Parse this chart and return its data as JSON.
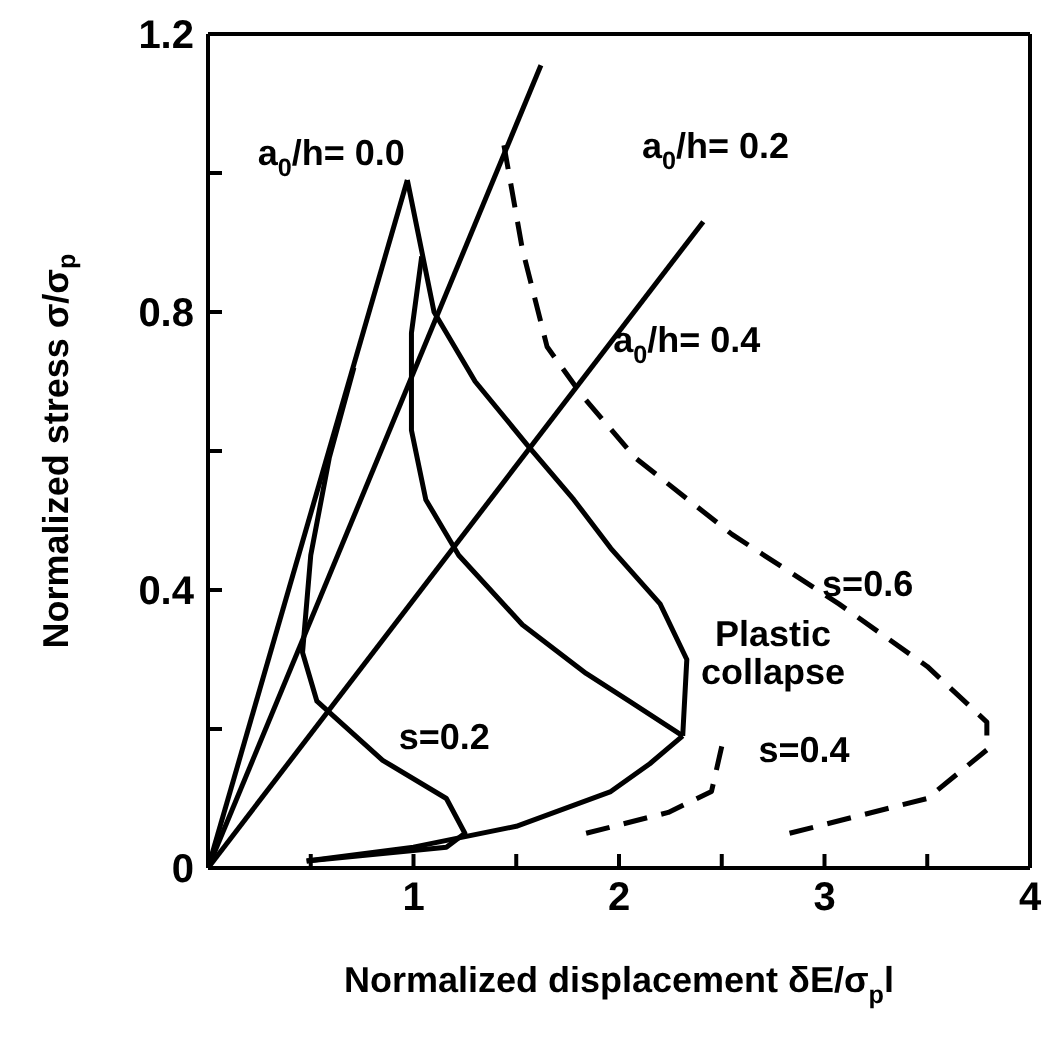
{
  "chart_data": {
    "type": "line",
    "xlabel": "Normalized displacement  δE/σ$_{p}$l",
    "ylabel": "Normalized stress  σ/σ$_{p}$",
    "xlim": [
      0,
      4
    ],
    "ylim": [
      0,
      1.2
    ],
    "xticks": [
      {
        "value": 0,
        "label": null
      },
      {
        "value": 0.5,
        "label": null
      },
      1,
      {
        "value": 1.5,
        "label": null
      },
      2,
      {
        "value": 2.5,
        "label": null
      },
      3,
      {
        "value": 3.5,
        "label": null
      },
      4
    ],
    "yticks": [
      0,
      {
        "value": 0.2,
        "label": null
      },
      0.4,
      {
        "value": 0.6,
        "label": null
      },
      0.8,
      {
        "value": 1.0,
        "label": null
      },
      1.2
    ],
    "legend": false,
    "marker": "none",
    "series": [
      {
        "color": "#000000",
        "line_style": "solid",
        "x": [
          0,
          0.97
        ],
        "values": [
          0,
          0.99
        ]
      },
      {
        "color": "#000000",
        "line_style": "solid",
        "x": [
          0,
          1.62
        ],
        "values": [
          0,
          1.155
        ]
      },
      {
        "color": "#000000",
        "line_style": "solid",
        "x": [
          0,
          2.41
        ],
        "values": [
          0,
          0.93
        ]
      },
      {
        "color": "#000000",
        "line_style": "solid",
        "x": [
          0.97,
          1.1,
          1.3,
          1.55,
          1.78,
          1.96,
          2.2,
          2.33,
          2.31
        ],
        "values": [
          0.99,
          0.8,
          0.7,
          0.61,
          0.53,
          0.46,
          0.38,
          0.3,
          0.19
        ]
      },
      {
        "color": "#000000",
        "line_style": "solid",
        "x": [
          1.04,
          0.99,
          0.99,
          1.06,
          1.22,
          1.53,
          1.84,
          2.05,
          2.31
        ],
        "values": [
          0.88,
          0.77,
          0.63,
          0.53,
          0.45,
          0.35,
          0.28,
          0.24,
          0.19
        ]
      },
      {
        "color": "#000000",
        "line_style": "solid",
        "x": [
          0.71,
          0.59,
          0.5,
          0.46,
          0.53,
          0.85,
          1.16,
          1.25,
          1.16,
          0.48
        ],
        "values": [
          0.72,
          0.59,
          0.45,
          0.31,
          0.24,
          0.155,
          0.1,
          0.05,
          0.03,
          0.01
        ]
      },
      {
        "color": "#000000",
        "line_style": "solid",
        "x": [
          0.48,
          1.0,
          1.5,
          1.96,
          2.15,
          2.31
        ],
        "values": [
          0.01,
          0.03,
          0.06,
          0.11,
          0.15,
          0.19
        ]
      },
      {
        "color": "#000000",
        "line_style": "dashed",
        "x": [
          1.44,
          1.53,
          1.65,
          1.82,
          2.08,
          2.55,
          3.07,
          3.5,
          3.79,
          3.79,
          3.5,
          2.83
        ],
        "values": [
          1.04,
          0.89,
          0.75,
          0.68,
          0.59,
          0.48,
          0.38,
          0.29,
          0.21,
          0.17,
          0.1,
          0.05
        ]
      },
      {
        "color": "#000000",
        "line_style": "dashed",
        "x": [
          2.5,
          2.45,
          2.24,
          1.84
        ],
        "values": [
          0.175,
          0.11,
          0.08,
          0.05
        ]
      }
    ],
    "annotations": [
      "a$_{0}$/h= 0.0",
      "a$_{0}$/h= 0.2",
      "a$_{0}$/h= 0.4",
      "s=0.6",
      "Plastic\ncollapse",
      "s=0.4",
      "s=0.2"
    ]
  }
}
